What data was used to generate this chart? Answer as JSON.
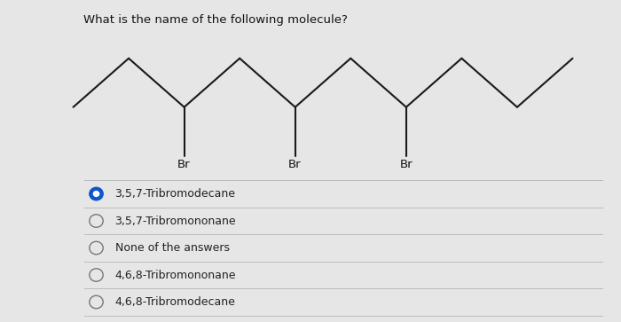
{
  "title": "What is the name of the following molecule?",
  "title_fontsize": 9.5,
  "background_color": "#e6e6e6",
  "options": [
    {
      "text": "3,5,7-Tribromodecane",
      "selected": true
    },
    {
      "text": "3,5,7-Tribromononane",
      "selected": false
    },
    {
      "text": "None of the answers",
      "selected": false
    },
    {
      "text": "4,6,8-Tribromononane",
      "selected": false
    },
    {
      "text": "4,6,8-Tribromodecane",
      "selected": false
    }
  ],
  "selected_color": "#1155cc",
  "unselected_color": "#777777",
  "option_fontsize": 9,
  "br_fontsize": 9.5,
  "line_color": "#1a1a1a",
  "line_width": 1.5,
  "divider_color": "#bbbbbb",
  "chain_x": [
    0,
    1,
    2,
    3,
    4,
    5,
    6,
    7,
    8,
    9
  ],
  "chain_y": [
    1,
    2,
    1,
    2,
    1,
    2,
    1,
    2,
    1,
    2
  ],
  "br_indices": [
    2,
    4,
    6
  ],
  "br_drop": 1.0,
  "mol_xlim": [
    -0.2,
    9.2
  ],
  "mol_ylim": [
    -0.5,
    2.8
  ]
}
